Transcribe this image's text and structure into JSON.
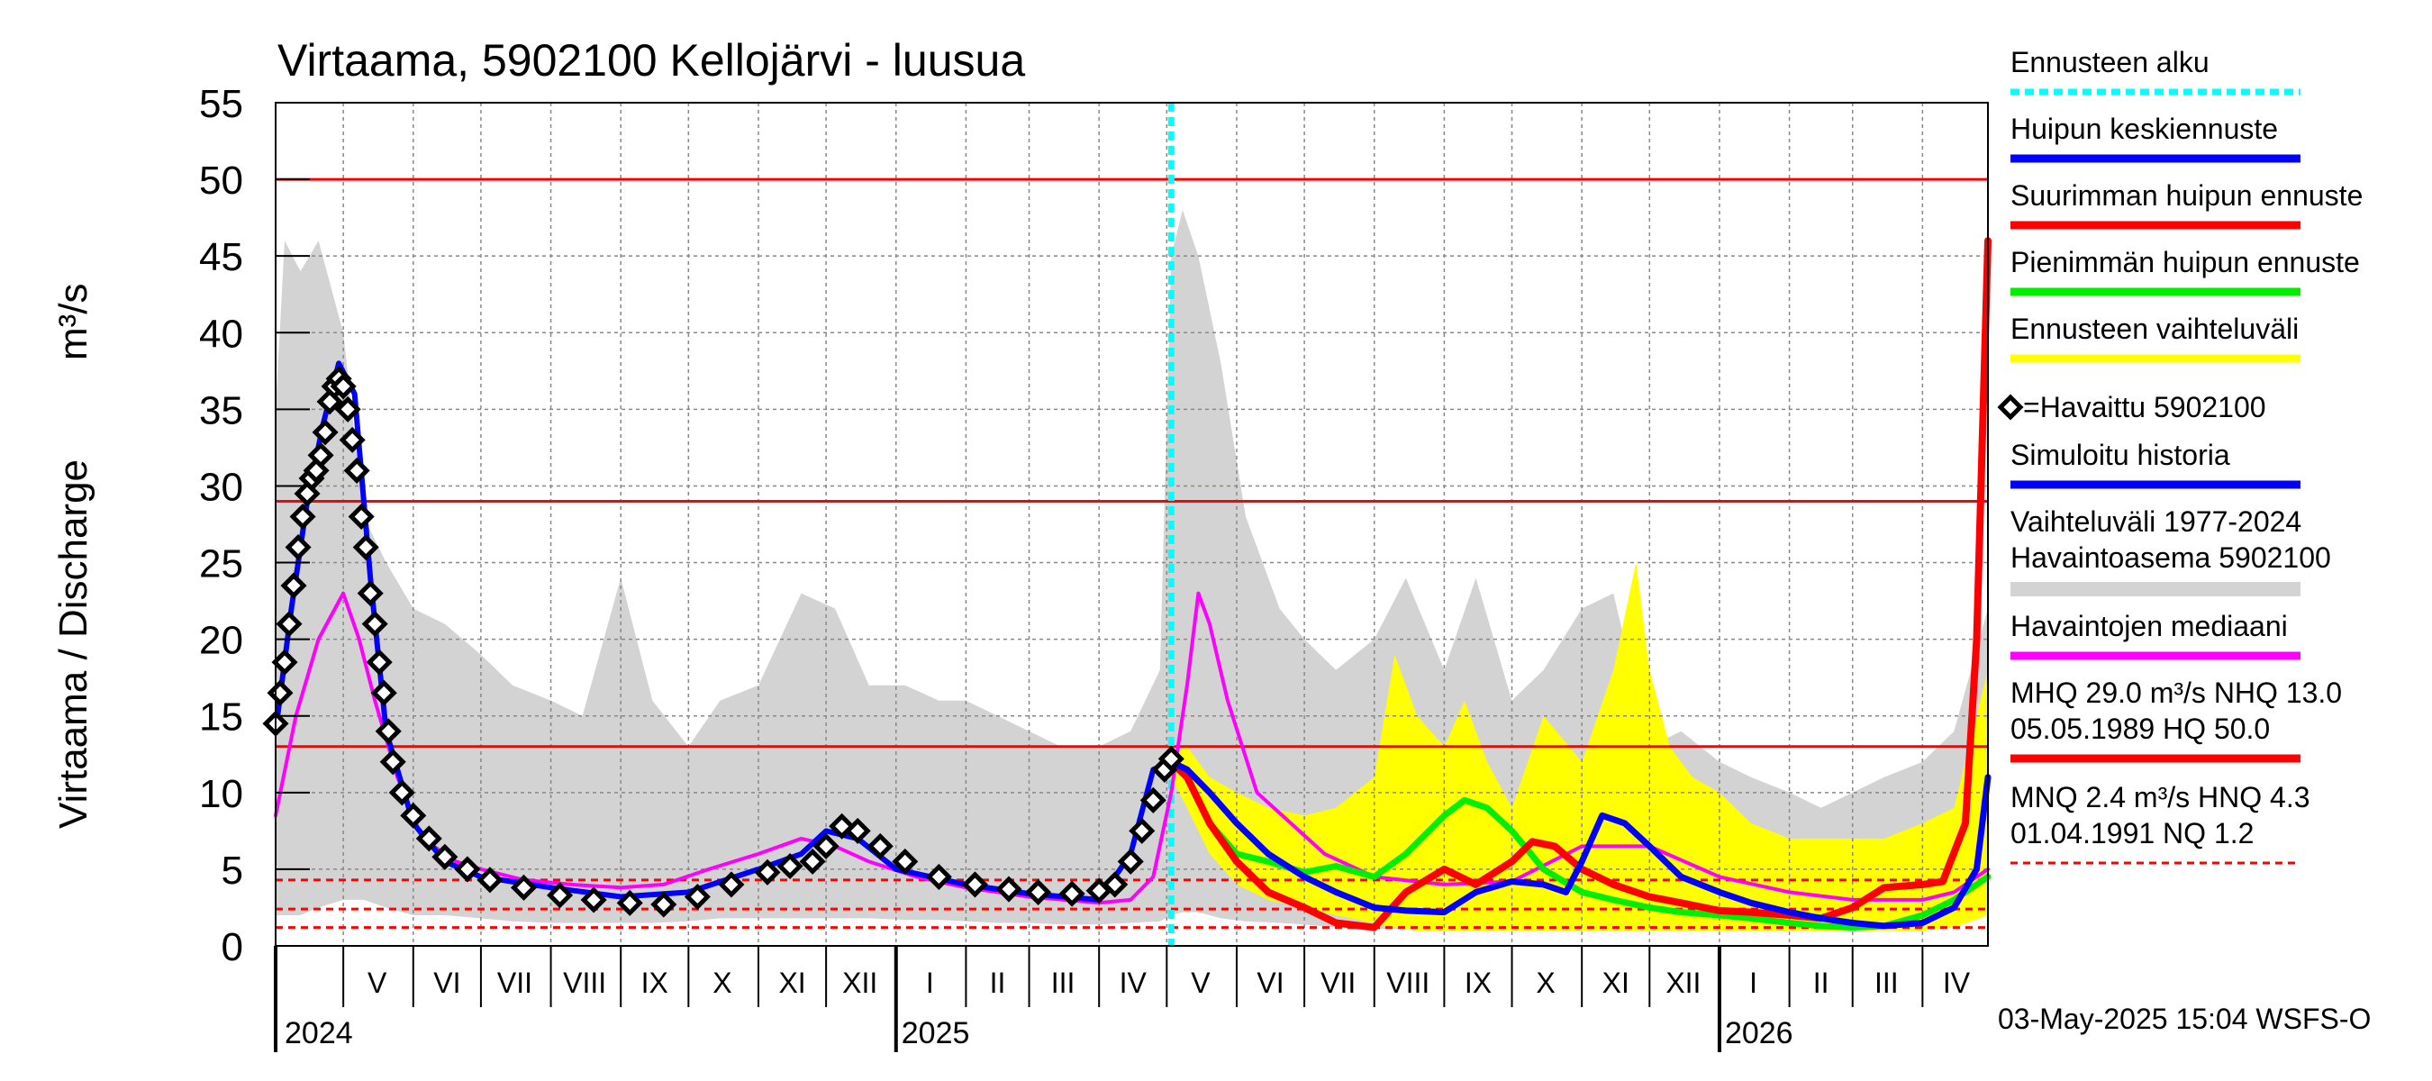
{
  "chart_data": {
    "type": "line",
    "title": "Virtaama, 5902100 Kellojärvi - luusua",
    "ylabel_left": "Virtaama / Discharge",
    "ylabel_unit": "m³/s",
    "ylim": [
      0,
      55
    ],
    "yticks": [
      "0",
      "5",
      "10",
      "15",
      "20",
      "25",
      "30",
      "35",
      "40",
      "45",
      "50",
      "55"
    ],
    "x_start": "2024-04-01",
    "x_end": "2026-04-30",
    "forecast_start": "2025-05-03",
    "month_labels": [
      {
        "label": "V",
        "date": "2024-05-16"
      },
      {
        "label": "VI",
        "date": "2024-06-16"
      },
      {
        "label": "VII",
        "date": "2024-07-16"
      },
      {
        "label": "VIII",
        "date": "2024-08-16"
      },
      {
        "label": "IX",
        "date": "2024-09-16"
      },
      {
        "label": "X",
        "date": "2024-10-16"
      },
      {
        "label": "XI",
        "date": "2024-11-16"
      },
      {
        "label": "XII",
        "date": "2024-12-16"
      },
      {
        "label": "I",
        "date": "2025-01-16"
      },
      {
        "label": "II",
        "date": "2025-02-15"
      },
      {
        "label": "III",
        "date": "2025-03-16"
      },
      {
        "label": "IV",
        "date": "2025-04-16"
      },
      {
        "label": "V",
        "date": "2025-05-16"
      },
      {
        "label": "VI",
        "date": "2025-06-16"
      },
      {
        "label": "VII",
        "date": "2025-07-16"
      },
      {
        "label": "VIII",
        "date": "2025-08-16"
      },
      {
        "label": "IX",
        "date": "2025-09-16"
      },
      {
        "label": "X",
        "date": "2025-10-16"
      },
      {
        "label": "XI",
        "date": "2025-11-16"
      },
      {
        "label": "XII",
        "date": "2025-12-16"
      },
      {
        "label": "I",
        "date": "2026-01-16"
      },
      {
        "label": "II",
        "date": "2026-02-15"
      },
      {
        "label": "III",
        "date": "2026-03-16"
      },
      {
        "label": "IV",
        "date": "2026-04-16"
      }
    ],
    "year_labels": [
      {
        "label": "2024",
        "date": "2024-04-01"
      },
      {
        "label": "2025",
        "date": "2025-01-01"
      },
      {
        "label": "2026",
        "date": "2026-01-01"
      }
    ],
    "reference_lines": [
      {
        "name": "HQ",
        "value": 50.0,
        "style": "solid"
      },
      {
        "name": "MHQ",
        "value": 29.0,
        "style": "solid"
      },
      {
        "name": "NHQ",
        "value": 13.0,
        "style": "solid"
      },
      {
        "name": "HNQ",
        "value": 4.3,
        "style": "dashed"
      },
      {
        "name": "MNQ",
        "value": 2.4,
        "style": "dashed"
      },
      {
        "name": "NQ",
        "value": 1.2,
        "style": "dashed"
      }
    ],
    "series": [
      {
        "name": "Vaihteluväli 1977-2024 Havaintoasema 5902100",
        "kind": "band",
        "color": "#d3d3d3",
        "x": [
          "2024-04-01",
          "2024-04-05",
          "2024-04-12",
          "2024-04-20",
          "2024-05-01",
          "2024-05-10",
          "2024-05-20",
          "2024-06-01",
          "2024-06-15",
          "2024-07-01",
          "2024-07-15",
          "2024-08-01",
          "2024-08-15",
          "2024-09-01",
          "2024-09-15",
          "2024-10-01",
          "2024-10-15",
          "2024-11-01",
          "2024-11-20",
          "2024-12-05",
          "2024-12-20",
          "2025-01-05",
          "2025-01-20",
          "2025-02-01",
          "2025-02-15",
          "2025-03-01",
          "2025-03-15",
          "2025-04-01",
          "2025-04-15",
          "2025-04-28",
          "2025-05-03",
          "2025-05-08",
          "2025-05-15",
          "2025-05-25",
          "2025-06-05",
          "2025-06-20",
          "2025-07-01",
          "2025-07-15",
          "2025-08-01",
          "2025-08-15",
          "2025-09-01",
          "2025-09-15",
          "2025-10-01",
          "2025-10-15",
          "2025-11-01",
          "2025-11-15",
          "2025-12-01",
          "2025-12-15",
          "2026-01-01",
          "2026-01-15",
          "2026-02-01",
          "2026-02-15",
          "2026-03-01",
          "2026-03-15",
          "2026-04-01",
          "2026-04-15",
          "2026-04-30"
        ],
        "upper": [
          35,
          46,
          44,
          46,
          40,
          28,
          25,
          22,
          21,
          19,
          17,
          16,
          15,
          24,
          16,
          13,
          16,
          17,
          23,
          22,
          17,
          17,
          16,
          16,
          15,
          14,
          13,
          13,
          14,
          18,
          45,
          48,
          45,
          38,
          28,
          22,
          20,
          18,
          20,
          24,
          18,
          24,
          16,
          18,
          22,
          23,
          13,
          14,
          12,
          11,
          10,
          9,
          10,
          11,
          12,
          14,
          22
        ],
        "lower": [
          2,
          2,
          2,
          2.5,
          3,
          3,
          2.5,
          2,
          2,
          1.8,
          1.6,
          1.5,
          1.5,
          1.5,
          1.5,
          1.6,
          1.8,
          1.8,
          1.8,
          1.8,
          1.8,
          1.7,
          1.7,
          1.6,
          1.5,
          1.5,
          1.4,
          1.4,
          1.5,
          1.6,
          2,
          2.2,
          2.2,
          1.8,
          1.6,
          1.5,
          1.4,
          1.2,
          1.1,
          1.1,
          1.2,
          1.2,
          1.3,
          1.3,
          1.4,
          1.4,
          1.4,
          1.3,
          1.3,
          1.3,
          1.2,
          1.2,
          1.2,
          1.2,
          1.3,
          1.5,
          2
        ]
      },
      {
        "name": "Ennusteen vaihteluväli",
        "kind": "band",
        "color": "#ffff00",
        "x": [
          "2025-05-03",
          "2025-05-10",
          "2025-05-20",
          "2025-06-01",
          "2025-06-15",
          "2025-07-01",
          "2025-07-15",
          "2025-08-01",
          "2025-08-10",
          "2025-08-20",
          "2025-09-01",
          "2025-09-10",
          "2025-09-20",
          "2025-10-01",
          "2025-10-15",
          "2025-11-01",
          "2025-11-15",
          "2025-11-25",
          "2025-12-01",
          "2025-12-10",
          "2025-12-20",
          "2026-01-01",
          "2026-01-15",
          "2026-02-01",
          "2026-02-15",
          "2026-03-01",
          "2026-03-15",
          "2026-04-01",
          "2026-04-15",
          "2026-04-30"
        ],
        "upper": [
          12.5,
          13,
          11,
          10,
          9,
          8.5,
          9,
          11,
          19,
          15,
          13,
          16,
          12,
          9,
          15,
          12,
          18,
          25,
          18,
          13,
          11,
          10,
          8,
          7,
          7,
          7,
          7,
          8,
          9,
          18
        ],
        "lower": [
          11,
          9,
          6,
          4,
          3,
          2.5,
          2,
          1.5,
          1.2,
          1,
          1,
          1,
          1,
          1,
          1,
          1,
          1,
          1,
          1,
          1,
          1,
          1,
          1,
          1,
          1,
          1,
          1,
          1,
          1.2,
          2
        ]
      },
      {
        "name": "Havaintojen mediaani",
        "kind": "line",
        "color": "#ff00ff",
        "x": [
          "2024-04-01",
          "2024-04-10",
          "2024-04-20",
          "2024-05-01",
          "2024-05-08",
          "2024-05-15",
          "2024-05-25",
          "2024-06-05",
          "2024-06-20",
          "2024-07-01",
          "2024-07-20",
          "2024-08-10",
          "2024-09-01",
          "2024-09-20",
          "2024-10-10",
          "2024-11-01",
          "2024-11-20",
          "2024-12-05",
          "2024-12-20",
          "2025-01-10",
          "2025-02-01",
          "2025-03-01",
          "2025-04-01",
          "2025-04-15",
          "2025-04-25",
          "2025-05-03",
          "2025-05-10",
          "2025-05-15",
          "2025-05-20",
          "2025-05-28",
          "2025-06-10",
          "2025-06-25",
          "2025-07-10",
          "2025-08-01",
          "2025-09-01",
          "2025-10-01",
          "2025-11-01",
          "2025-12-01",
          "2026-01-01",
          "2026-02-01",
          "2026-03-01",
          "2026-04-01",
          "2026-04-15",
          "2026-04-30"
        ],
        "y": [
          8.5,
          15,
          20,
          23,
          20,
          16,
          11,
          7,
          5.5,
          5,
          4.3,
          4,
          3.8,
          4,
          5,
          6,
          7,
          6.5,
          5.5,
          4.5,
          3.8,
          3.2,
          2.8,
          3,
          4.5,
          10,
          17,
          23,
          21,
          16,
          10,
          8,
          6,
          4.5,
          4,
          4.2,
          6.5,
          6.5,
          4.5,
          3.5,
          3,
          3,
          3.5,
          5
        ]
      },
      {
        "name": "Simuloitu historia",
        "kind": "line",
        "color": "#0000ff",
        "x": [
          "2024-04-01",
          "2024-04-08",
          "2024-04-15",
          "2024-04-22",
          "2024-04-29",
          "2024-05-06",
          "2024-05-13",
          "2024-05-20",
          "2024-06-01",
          "2024-06-15",
          "2024-07-01",
          "2024-08-01",
          "2024-09-01",
          "2024-10-01",
          "2024-11-01",
          "2024-11-20",
          "2024-12-01",
          "2024-12-15",
          "2025-01-01",
          "2025-02-01",
          "2025-03-01",
          "2025-04-01",
          "2025-04-15",
          "2025-04-25",
          "2025-05-03"
        ],
        "y": [
          14,
          22,
          29,
          34,
          38,
          36,
          24,
          14,
          8,
          5.5,
          4.5,
          3.8,
          3.2,
          3.5,
          5,
          6,
          7.5,
          7,
          5,
          4,
          3.4,
          3,
          6,
          11.5,
          12
        ]
      },
      {
        "name": "Huipun keskiennuste",
        "kind": "line",
        "color": "#0000ff",
        "x": [
          "2025-05-03",
          "2025-05-10",
          "2025-05-20",
          "2025-06-01",
          "2025-06-15",
          "2025-07-01",
          "2025-07-15",
          "2025-08-01",
          "2025-08-15",
          "2025-09-01",
          "2025-09-15",
          "2025-10-01",
          "2025-10-15",
          "2025-10-25",
          "2025-11-01",
          "2025-11-10",
          "2025-11-20",
          "2025-12-01",
          "2025-12-15",
          "2026-01-01",
          "2026-01-15",
          "2026-02-01",
          "2026-02-15",
          "2026-03-01",
          "2026-03-15",
          "2026-04-01",
          "2026-04-15",
          "2026-04-25",
          "2026-04-30"
        ],
        "y": [
          12,
          11.5,
          10,
          8,
          6,
          4.5,
          3.5,
          2.5,
          2.3,
          2.2,
          3.5,
          4.2,
          4,
          3.5,
          5.5,
          8.5,
          8,
          6.5,
          4.5,
          3.5,
          2.8,
          2.2,
          1.8,
          1.5,
          1.3,
          1.5,
          2.5,
          5,
          11
        ]
      },
      {
        "name": "Suurimman huipun ennuste",
        "kind": "line",
        "color": "#ff0000",
        "x": [
          "2025-05-03",
          "2025-05-10",
          "2025-05-20",
          "2025-06-01",
          "2025-06-15",
          "2025-07-01",
          "2025-07-15",
          "2025-08-01",
          "2025-08-15",
          "2025-09-01",
          "2025-09-15",
          "2025-10-01",
          "2025-10-10",
          "2025-10-20",
          "2025-11-01",
          "2025-11-15",
          "2025-12-01",
          "2025-12-15",
          "2026-01-01",
          "2026-01-15",
          "2026-02-01",
          "2026-02-15",
          "2026-03-01",
          "2026-03-15",
          "2026-04-01",
          "2026-04-10",
          "2026-04-20",
          "2026-04-25",
          "2026-04-30"
        ],
        "y": [
          12,
          11,
          8,
          5.5,
          3.5,
          2.5,
          1.5,
          1.2,
          3.5,
          5,
          4,
          5.5,
          6.8,
          6.5,
          5,
          4,
          3.2,
          2.8,
          2.3,
          2.2,
          2,
          1.8,
          2.5,
          3.8,
          4,
          4.2,
          8,
          20,
          46
        ]
      },
      {
        "name": "Pienimmän huipun ennuste",
        "kind": "line",
        "color": "#00ee00",
        "x": [
          "2025-05-03",
          "2025-05-10",
          "2025-05-20",
          "2025-06-01",
          "2025-06-15",
          "2025-07-01",
          "2025-07-15",
          "2025-08-01",
          "2025-08-15",
          "2025-09-01",
          "2025-09-10",
          "2025-09-20",
          "2025-10-01",
          "2025-10-15",
          "2025-11-01",
          "2025-11-15",
          "2025-12-01",
          "2025-12-15",
          "2026-01-01",
          "2026-01-15",
          "2026-02-01",
          "2026-02-15",
          "2026-03-01",
          "2026-03-15",
          "2026-04-01",
          "2026-04-15",
          "2026-04-30"
        ],
        "y": [
          12,
          11,
          8,
          6,
          5.5,
          4.8,
          5.2,
          4.5,
          6,
          8.5,
          9.5,
          9,
          7.5,
          5,
          3.5,
          3,
          2.5,
          2.2,
          2,
          1.8,
          1.5,
          1.3,
          1.2,
          1.3,
          2,
          3,
          4.5
        ]
      },
      {
        "name": "=Havaittu 5902100",
        "kind": "markers",
        "color": "#000000",
        "x": [
          "2024-04-01",
          "2024-04-03",
          "2024-04-05",
          "2024-04-07",
          "2024-04-09",
          "2024-04-11",
          "2024-04-13",
          "2024-04-15",
          "2024-04-17",
          "2024-04-19",
          "2024-04-21",
          "2024-04-23",
          "2024-04-25",
          "2024-04-27",
          "2024-04-29",
          "2024-05-01",
          "2024-05-03",
          "2024-05-05",
          "2024-05-07",
          "2024-05-09",
          "2024-05-11",
          "2024-05-13",
          "2024-05-15",
          "2024-05-17",
          "2024-05-19",
          "2024-05-21",
          "2024-05-23",
          "2024-05-27",
          "2024-06-01",
          "2024-06-08",
          "2024-06-15",
          "2024-06-25",
          "2024-07-05",
          "2024-07-20",
          "2024-08-05",
          "2024-08-20",
          "2024-09-05",
          "2024-09-20",
          "2024-10-05",
          "2024-10-20",
          "2024-11-05",
          "2024-11-15",
          "2024-11-25",
          "2024-12-01",
          "2024-12-08",
          "2024-12-15",
          "2024-12-25",
          "2025-01-05",
          "2025-01-20",
          "2025-02-05",
          "2025-02-20",
          "2025-03-05",
          "2025-03-20",
          "2025-04-01",
          "2025-04-08",
          "2025-04-15",
          "2025-04-20",
          "2025-04-25",
          "2025-04-30",
          "2025-05-03"
        ],
        "y": [
          14.5,
          16.5,
          18.5,
          21,
          23.5,
          26,
          28,
          29.5,
          30.5,
          31,
          32,
          33.5,
          35.5,
          36.5,
          37,
          36.5,
          35,
          33,
          31,
          28,
          26,
          23,
          21,
          18.5,
          16.5,
          14,
          12,
          10,
          8.5,
          7,
          5.8,
          5,
          4.3,
          3.8,
          3.3,
          3,
          2.8,
          2.7,
          3.2,
          4,
          4.8,
          5.2,
          5.5,
          6.5,
          7.8,
          7.5,
          6.5,
          5.5,
          4.5,
          4,
          3.7,
          3.5,
          3.4,
          3.6,
          4,
          5.5,
          7.5,
          9.5,
          11.5,
          12.2
        ]
      }
    ],
    "legend": [
      {
        "label": "Ennusteen alku",
        "color": "#00ffff",
        "style": "dashed"
      },
      {
        "label": "Huipun keskiennuste",
        "color": "#0000ff",
        "style": "solid"
      },
      {
        "label": "Suurimman huipun ennuste",
        "color": "#ff0000",
        "style": "solid"
      },
      {
        "label": "Pienimmän huipun ennuste",
        "color": "#00ee00",
        "style": "solid"
      },
      {
        "label": "Ennusteen vaihteluväli",
        "color": "#ffff00",
        "style": "solid"
      },
      {
        "label": "=Havaittu 5902100",
        "color": "#000000",
        "style": "marker"
      },
      {
        "label": "Simuloitu historia",
        "color": "#0000ff",
        "style": "solid"
      },
      {
        "label": "Vaihteluväli 1977-2024",
        "label2": " Havaintoasema 5902100",
        "color": "#d3d3d3",
        "style": "band"
      },
      {
        "label": "Havaintojen mediaani",
        "color": "#ff00ff",
        "style": "solid"
      },
      {
        "label": "MHQ 29.0 m³/s NHQ 13.0",
        "label2": "05.05.1989 HQ 50.0",
        "color": "#ff0000",
        "style": "solid"
      },
      {
        "label": "MNQ  2.4 m³/s HNQ  4.3",
        "label2": "01.04.1991 NQ  1.2",
        "color": "#ff0000",
        "style": "dashed"
      }
    ],
    "footer": "03-May-2025 15:04 WSFS-O",
    "grid": true
  }
}
